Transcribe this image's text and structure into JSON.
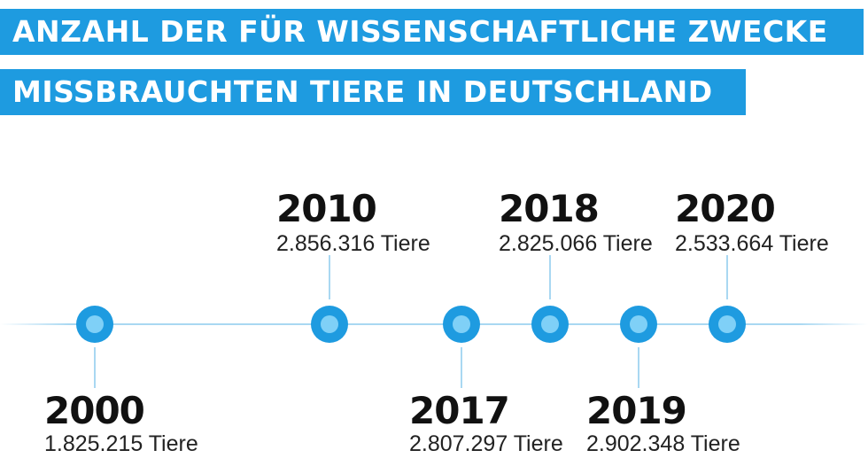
{
  "title": {
    "line1": "ANZAHL DER FÜR WISSENSCHAFTLICHE ZWECKE",
    "line2": "MISSBRAUCHTEN TIERE IN DEUTSCHLAND"
  },
  "timeline": [
    {
      "year": "2000",
      "count": "1.825.215 Tiere"
    },
    {
      "year": "2010",
      "count": "2.856.316 Tiere"
    },
    {
      "year": "2017",
      "count": "2.807.297 Tiere"
    },
    {
      "year": "2018",
      "count": "2.825.066 Tiere"
    },
    {
      "year": "2019",
      "count": "2.902.348 Tiere"
    },
    {
      "year": "2020",
      "count": "2.533.664 Tiere"
    }
  ],
  "colors": {
    "accent": "#1e9be0",
    "dot_inner": "#7fd0f7",
    "line": "#a9d8f2",
    "text": "#111111"
  }
}
